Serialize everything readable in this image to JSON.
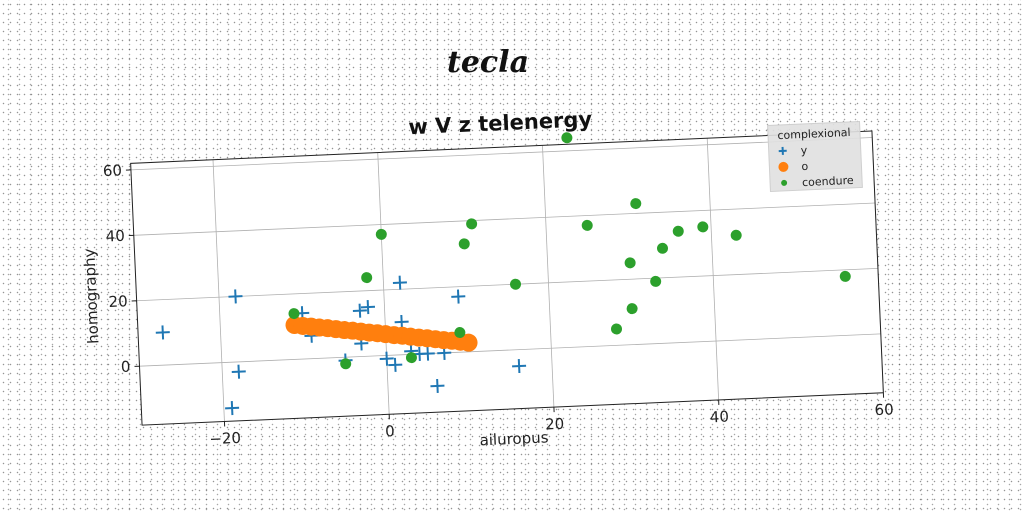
{
  "figure_title": "tecla",
  "chart_data": {
    "type": "scatter",
    "title": "w V z telenergy",
    "xlabel": "ailuropus",
    "ylabel": "homography",
    "xlim": [
      -30,
      60
    ],
    "ylim": [
      -18,
      62
    ],
    "xticks": [
      -20,
      0,
      20,
      40,
      60
    ],
    "yticks": [
      0,
      20,
      40,
      60
    ],
    "grid": true,
    "legend": {
      "title": "complexional",
      "placement": "top-right"
    },
    "series": [
      {
        "name": "y",
        "marker": "plus",
        "color": "#1f77b4",
        "points": [
          [
            -27,
            10
          ],
          [
            -18,
            20
          ],
          [
            -18,
            -3
          ],
          [
            -19,
            -14
          ],
          [
            -10,
            14
          ],
          [
            -9,
            7
          ],
          [
            -5,
            -1
          ],
          [
            -3,
            14
          ],
          [
            -2,
            15
          ],
          [
            -3,
            4
          ],
          [
            0,
            -1
          ],
          [
            1,
            -3
          ],
          [
            2,
            22
          ],
          [
            2,
            10
          ],
          [
            3,
            1
          ],
          [
            4,
            0
          ],
          [
            5,
            0
          ],
          [
            6,
            -10
          ],
          [
            7,
            0
          ],
          [
            9,
            17
          ],
          [
            16,
            -5
          ]
        ]
      },
      {
        "name": "o",
        "marker": "circle",
        "color": "#ff7f0e",
        "points": [
          [
            -11,
            10.5
          ],
          [
            -10,
            10.1
          ],
          [
            -9,
            9.8
          ],
          [
            -8,
            9.4
          ],
          [
            -7,
            9.1
          ],
          [
            -6,
            8.7
          ],
          [
            -5,
            8.3
          ],
          [
            -4,
            8.0
          ],
          [
            -3,
            7.6
          ],
          [
            -2,
            7.2
          ],
          [
            -1,
            6.9
          ],
          [
            0,
            6.5
          ],
          [
            1,
            6.1
          ],
          [
            2,
            5.8
          ],
          [
            3,
            5.4
          ],
          [
            4,
            5.0
          ],
          [
            5,
            4.7
          ],
          [
            6,
            4.3
          ],
          [
            7,
            3.9
          ],
          [
            8,
            3.6
          ],
          [
            9,
            3.2
          ],
          [
            10,
            2.8
          ]
        ]
      },
      {
        "name": "coendure",
        "marker": "dot",
        "color": "#2ca02c",
        "points": [
          [
            -11,
            14
          ],
          [
            -5,
            -2
          ],
          [
            -2,
            24
          ],
          [
            0,
            37
          ],
          [
            3,
            -1
          ],
          [
            9,
            6
          ],
          [
            10,
            33
          ],
          [
            11,
            39
          ],
          [
            16,
            20
          ],
          [
            23,
            64
          ],
          [
            25,
            37
          ],
          [
            28,
            5
          ],
          [
            30,
            25
          ],
          [
            30,
            11
          ],
          [
            31,
            43
          ],
          [
            33,
            19
          ],
          [
            34,
            29
          ],
          [
            36,
            34
          ],
          [
            39,
            35
          ],
          [
            43,
            32
          ],
          [
            56,
            18
          ]
        ]
      }
    ]
  }
}
